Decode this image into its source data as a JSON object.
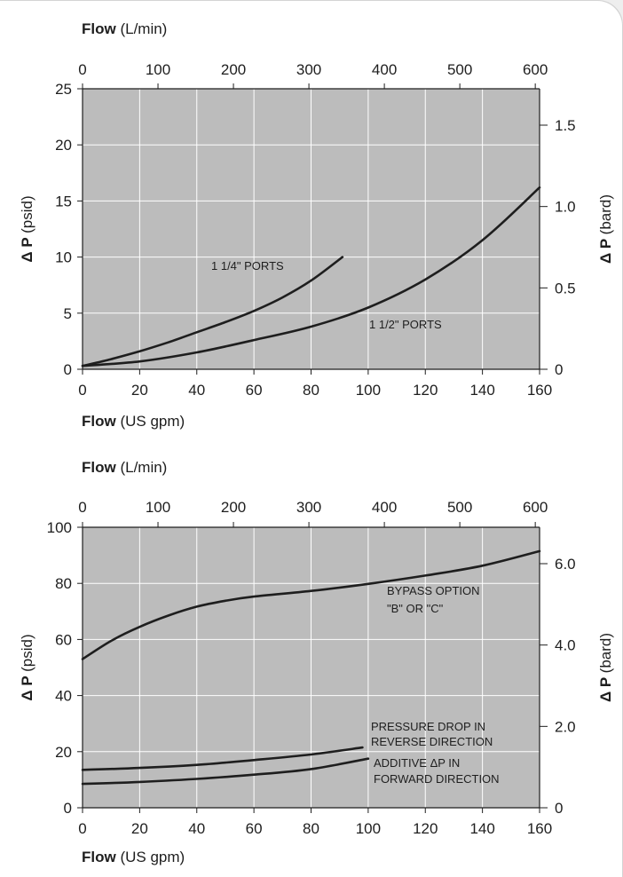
{
  "chart_data": [
    {
      "type": "line",
      "title": "",
      "x_bottom": {
        "label_bold": "Flow",
        "label_unit": "(US gpm)",
        "range": [
          0,
          160
        ],
        "ticks": [
          "0",
          "20",
          "40",
          "60",
          "80",
          "100",
          "120",
          "140",
          "160"
        ]
      },
      "x_top": {
        "label_bold": "Flow",
        "label_unit": "(L/min)",
        "range": [
          0,
          605.7
        ],
        "ticks": [
          "0",
          "100",
          "200",
          "300",
          "400",
          "500",
          "600"
        ]
      },
      "y_left": {
        "label_bold": "Δ P",
        "label_unit": "(psid)",
        "range": [
          0,
          25
        ],
        "ticks": [
          "0",
          "5",
          "10",
          "15",
          "20",
          "25"
        ]
      },
      "y_right": {
        "label_bold": "Δ P",
        "label_unit": "(bard)",
        "range": [
          0,
          1.7237
        ],
        "ticks": [
          "0",
          "0.5",
          "1.0",
          "1.5"
        ]
      },
      "grid": true,
      "series": [
        {
          "name": "1 1/4\" PORTS",
          "x": [
            0,
            10,
            20,
            30,
            40,
            50,
            60,
            70,
            80,
            91
          ],
          "y": [
            0.3,
            0.9,
            1.6,
            2.4,
            3.3,
            4.2,
            5.2,
            6.4,
            7.9,
            10.0
          ]
        },
        {
          "name": "1 1/2\" PORTS",
          "x": [
            0,
            20,
            40,
            60,
            80,
            100,
            120,
            140,
            160
          ],
          "y": [
            0.3,
            0.7,
            1.5,
            2.6,
            3.8,
            5.5,
            8.0,
            11.5,
            16.2
          ]
        }
      ],
      "annotations": [
        "1 1/4\" PORTS",
        "1 1/2\" PORTS"
      ]
    },
    {
      "type": "line",
      "title": "",
      "x_bottom": {
        "label_bold": "Flow",
        "label_unit": "(US gpm)",
        "range": [
          0,
          160
        ],
        "ticks": [
          "0",
          "20",
          "40",
          "60",
          "80",
          "100",
          "120",
          "140",
          "160"
        ]
      },
      "x_top": {
        "label_bold": "Flow",
        "label_unit": "(L/min)",
        "range": [
          0,
          605.7
        ],
        "ticks": [
          "0",
          "100",
          "200",
          "300",
          "400",
          "500",
          "600"
        ]
      },
      "y_left": {
        "label_bold": "Δ P",
        "label_unit": "(psid)",
        "range": [
          0,
          100
        ],
        "ticks": [
          "0",
          "20",
          "40",
          "60",
          "80",
          "100"
        ]
      },
      "y_right": {
        "label_bold": "Δ P",
        "label_unit": "(bard)",
        "range": [
          0,
          6.8948
        ],
        "ticks": [
          "0",
          "2.0",
          "4.0",
          "6.0"
        ]
      },
      "grid": true,
      "series": [
        {
          "name": "BYPASS OPTION \"B\" OR \"C\"",
          "x": [
            0,
            10,
            20,
            30,
            40,
            50,
            60,
            80,
            100,
            120,
            140,
            160
          ],
          "y": [
            53,
            59.5,
            64.5,
            68.5,
            71.7,
            73.8,
            75.3,
            77.3,
            79.8,
            82.8,
            86.3,
            91.5
          ]
        },
        {
          "name": "PRESSURE DROP IN REVERSE DIRECTION",
          "x": [
            0,
            20,
            40,
            60,
            80,
            98
          ],
          "y": [
            13.5,
            14.2,
            15.3,
            17.0,
            19.0,
            21.5
          ]
        },
        {
          "name": "ADDITIVE ΔP IN FORWARD DIRECTION",
          "x": [
            0,
            20,
            40,
            60,
            80,
            100
          ],
          "y": [
            8.5,
            9.2,
            10.3,
            11.8,
            13.8,
            17.5
          ]
        }
      ],
      "annotations": [
        "BYPASS OPTION",
        "\"B\" OR \"C\"",
        "PRESSURE DROP IN",
        "REVERSE DIRECTION",
        "ADDITIVE ΔP IN",
        "FORWARD DIRECTION"
      ]
    }
  ],
  "colors": {
    "plot_bg": "#bcbcbc",
    "grid": "#ffffff",
    "curve": "#1e1e1e"
  }
}
